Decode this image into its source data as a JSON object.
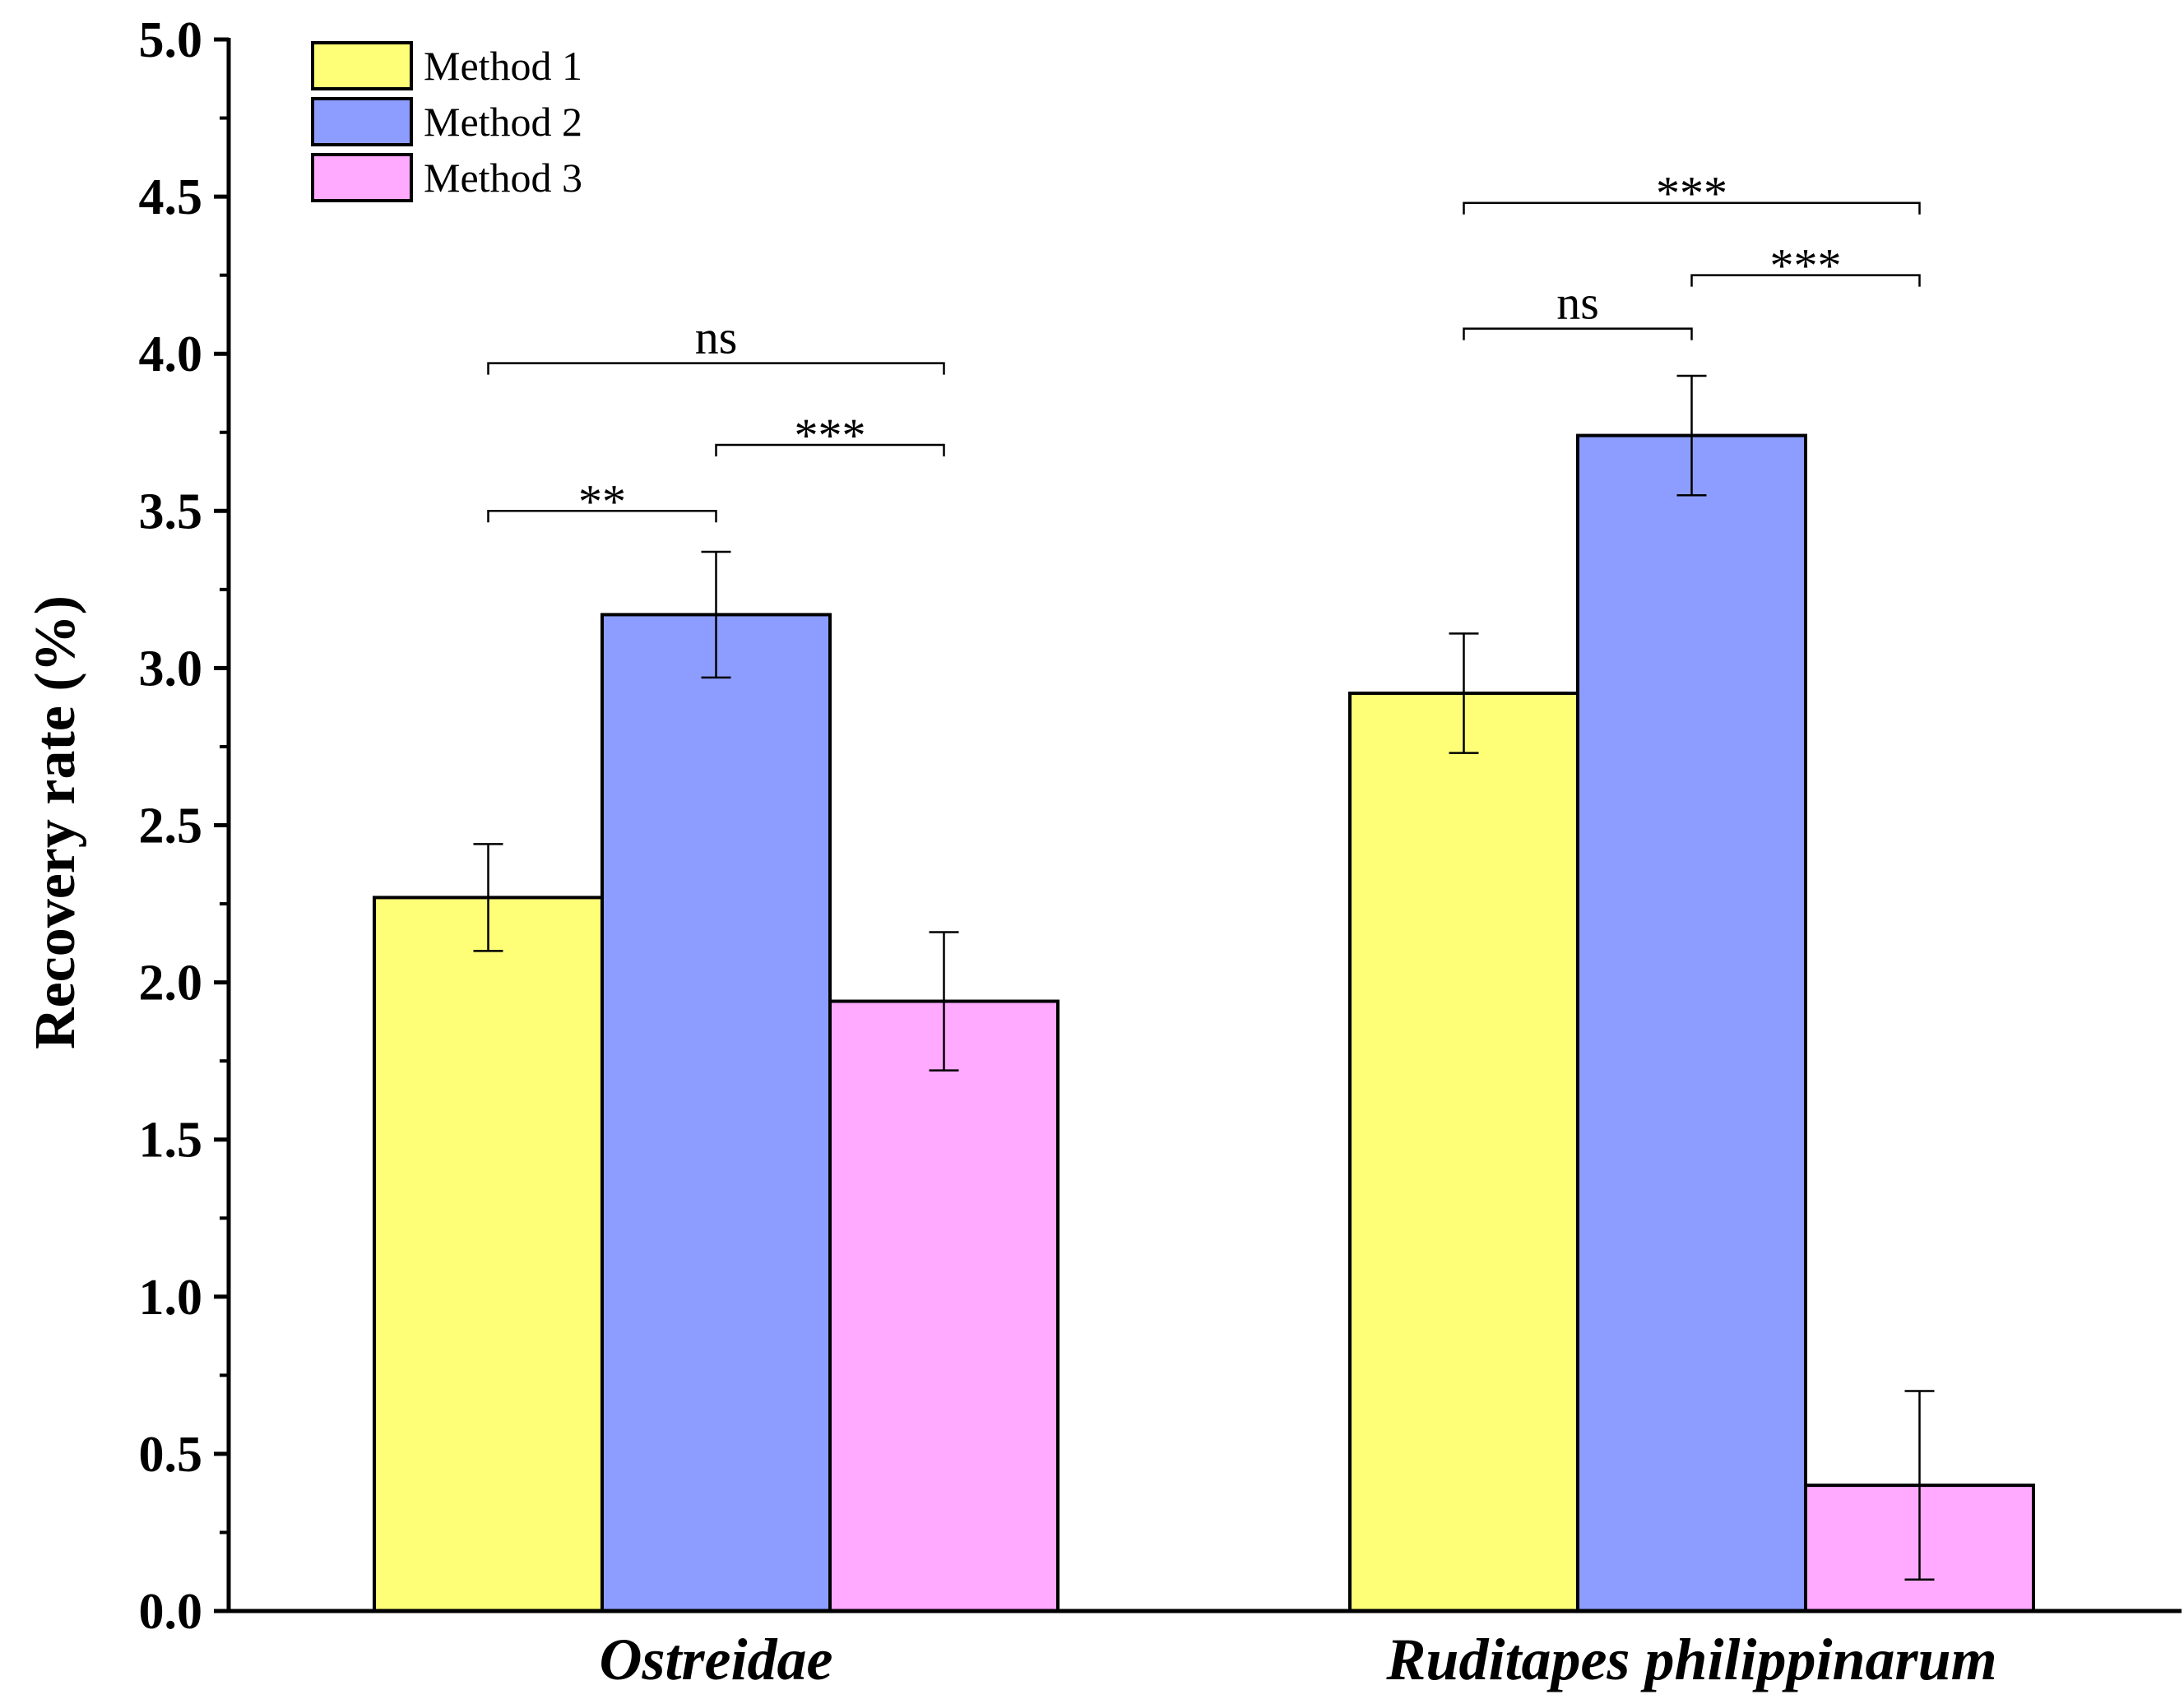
{
  "chart_data": {
    "type": "bar",
    "title": "",
    "xlabel": "",
    "ylabel": "Recovery rate (%)",
    "ylim": [
      0,
      5.0
    ],
    "yticks": [
      "0.0",
      "0.5",
      "1.0",
      "1.5",
      "2.0",
      "2.5",
      "3.0",
      "3.5",
      "4.0",
      "4.5",
      "5.0"
    ],
    "categories": [
      "Ostreidae",
      "Ruditapes philippinarum"
    ],
    "series": [
      {
        "name": "Method 1",
        "color": "#FFFF77",
        "values": [
          2.27,
          2.92
        ],
        "errors": [
          0.17,
          0.19
        ]
      },
      {
        "name": "Method 2",
        "color": "#8C9DFF",
        "values": [
          3.17,
          3.74
        ],
        "errors": [
          0.2,
          0.19
        ]
      },
      {
        "name": "Method 3",
        "color": "#FFAAFF",
        "values": [
          1.94,
          0.4
        ],
        "errors": [
          0.22,
          0.3
        ]
      }
    ],
    "legend_position": "top-left",
    "significance": [
      {
        "category": 0,
        "from": 0,
        "to": 1,
        "label": "**",
        "y": 3.5
      },
      {
        "category": 0,
        "from": 1,
        "to": 2,
        "label": "***",
        "y": 3.71
      },
      {
        "category": 0,
        "from": 0,
        "to": 2,
        "label": "ns",
        "y": 3.97
      },
      {
        "category": 1,
        "from": 0,
        "to": 1,
        "label": "ns",
        "y": 4.08
      },
      {
        "category": 1,
        "from": 1,
        "to": 2,
        "label": "***",
        "y": 4.25
      },
      {
        "category": 1,
        "from": 0,
        "to": 2,
        "label": "***",
        "y": 4.48
      }
    ]
  }
}
